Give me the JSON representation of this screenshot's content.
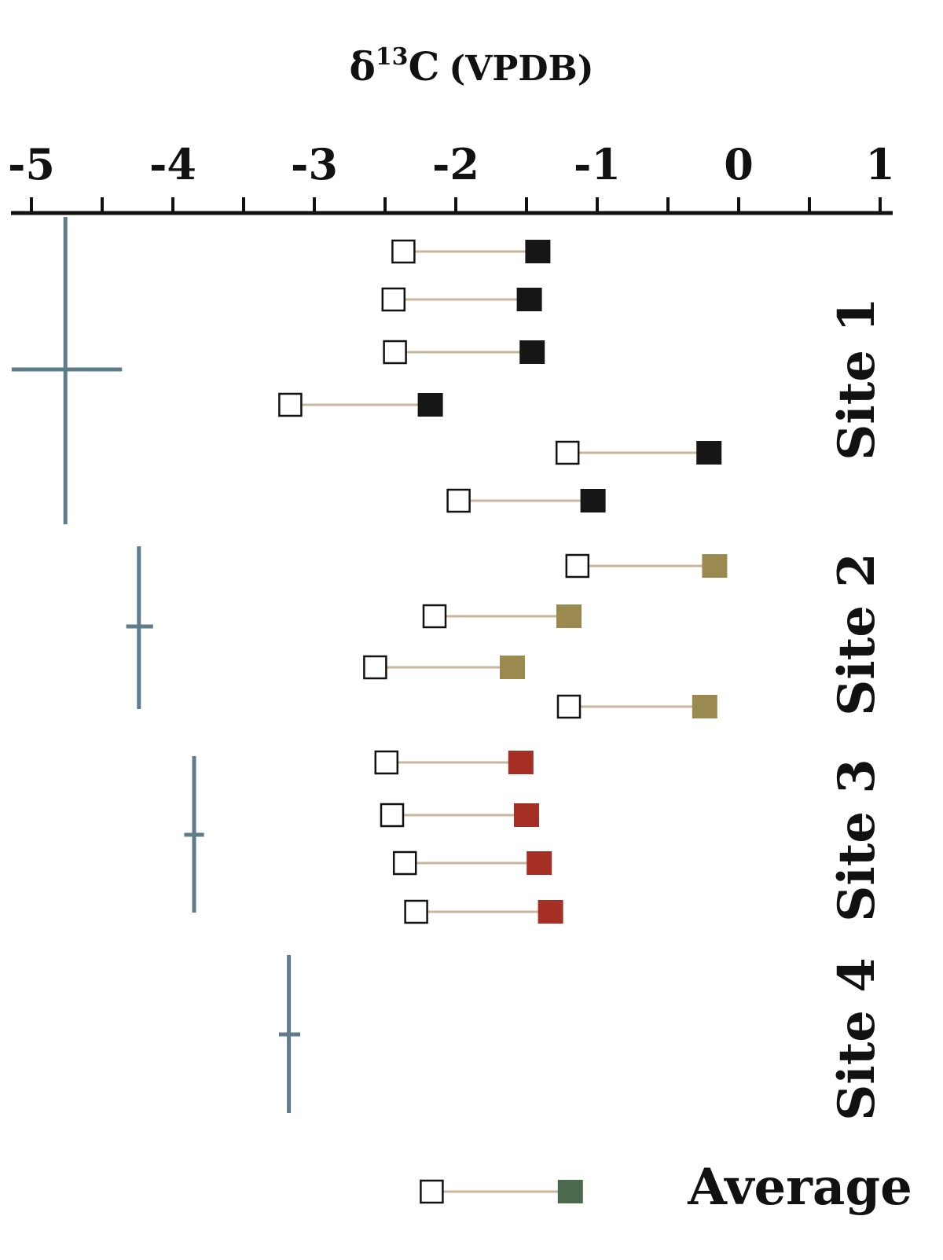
{
  "chart_data": {
    "type": "scatter",
    "title": "δ13C (VPDB)",
    "title_parts": {
      "symbol": "δ",
      "superscript": "13",
      "element": "C",
      "reference": "(VPDB)"
    },
    "axis_position": "top",
    "xlim": [
      -5.15,
      1.05
    ],
    "tick_labels": [
      "-5",
      "-4",
      "-3",
      "-2",
      "-1",
      "0",
      "1"
    ],
    "tick_values": [
      -5,
      -4,
      -3,
      -2,
      -1,
      0,
      1
    ],
    "grid": false,
    "colors": {
      "site1": "#161616",
      "site2": "#9b8a4f",
      "site3": "#a52f25",
      "average": "#4b6a4d",
      "connector": "#c8b79e",
      "error_bar": "#5e7c8a",
      "open_marker_stroke": "#111111"
    },
    "marker_legend": {
      "open": "hollow square",
      "filled": "solid square"
    },
    "groups": [
      {
        "label": "Site 1",
        "color_key": "site1",
        "pairs": [
          {
            "open": -2.37,
            "filled": -1.42
          },
          {
            "open": -2.44,
            "filled": -1.48
          },
          {
            "open": -2.43,
            "filled": -1.46
          },
          {
            "open": -3.17,
            "filled": -2.18
          },
          {
            "open": -1.21,
            "filled": -0.21
          },
          {
            "open": -1.98,
            "filled": -1.03
          }
        ],
        "error_bar": {
          "x": -4.76,
          "xerr_low": -5.14,
          "xerr_high": -4.36
        }
      },
      {
        "label": "Site 2",
        "color_key": "site2",
        "pairs": [
          {
            "open": -1.14,
            "filled": -0.17
          },
          {
            "open": -2.15,
            "filled": -1.2
          },
          {
            "open": -2.57,
            "filled": -1.6
          },
          {
            "open": -1.2,
            "filled": -0.24
          }
        ],
        "error_bar": {
          "x": -4.24,
          "xerr_low": -4.33,
          "xerr_high": -4.14
        }
      },
      {
        "label": "Site 3",
        "color_key": "site3",
        "pairs": [
          {
            "open": -2.49,
            "filled": -1.54
          },
          {
            "open": -2.45,
            "filled": -1.5
          },
          {
            "open": -2.36,
            "filled": -1.41
          },
          {
            "open": -2.28,
            "filled": -1.33
          }
        ],
        "error_bar": {
          "x": -3.85,
          "xerr_low": -3.92,
          "xerr_high": -3.78
        }
      },
      {
        "label": "Site 4",
        "color_key": "site4",
        "pairs": [],
        "error_bar": {
          "x": -3.18,
          "xerr_low": -3.25,
          "xerr_high": -3.1
        }
      },
      {
        "label": "Average",
        "color_key": "average",
        "pairs": [
          {
            "open": -2.17,
            "filled": -1.19
          }
        ],
        "error_bar": null
      }
    ]
  }
}
